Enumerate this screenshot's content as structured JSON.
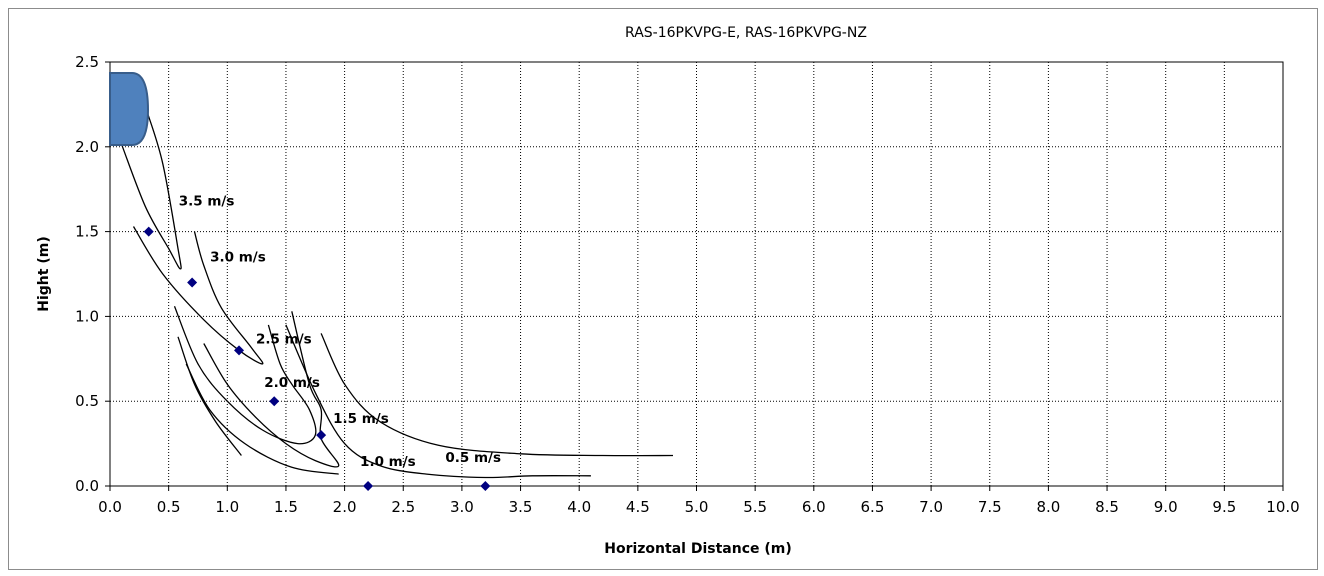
{
  "chart_data": {
    "type": "scatter",
    "title": "RAS-16PKVPG-E, RAS-16PKVPG-NZ",
    "xlabel": "Horizontal Distance (m)",
    "ylabel": "Hight (m)",
    "xlim": [
      0,
      10
    ],
    "ylim": [
      0,
      2.5
    ],
    "x_ticks": [
      "0.0",
      "0.5",
      "1.0",
      "1.5",
      "2.0",
      "2.5",
      "3.0",
      "3.5",
      "4.0",
      "4.5",
      "5.0",
      "5.5",
      "6.0",
      "6.5",
      "7.0",
      "7.5",
      "8.0",
      "8.5",
      "9.0",
      "9.5",
      "10.0"
    ],
    "y_ticks": [
      "0.0",
      "0.5",
      "1.0",
      "1.5",
      "2.0",
      "2.5"
    ],
    "grid": true,
    "legend": "none",
    "series": [
      {
        "marker_color": "#000080",
        "points": [
          {
            "x": 0.33,
            "y": 1.5,
            "label": "3.5 m/s"
          },
          {
            "x": 0.7,
            "y": 1.2,
            "label": "3.0 m/s"
          },
          {
            "x": 1.1,
            "y": 0.8,
            "label": "2.5 m/s"
          },
          {
            "x": 1.4,
            "y": 0.5,
            "label": "2.0 m/s"
          },
          {
            "x": 1.8,
            "y": 0.3,
            "label": "1.5 m/s"
          },
          {
            "x": 2.2,
            "y": 0.0,
            "label": "1.0 m/s"
          },
          {
            "x": 3.2,
            "y": 0.0,
            "label": "0.5 m/s"
          }
        ]
      }
    ],
    "contours": [
      {
        "label": "3.5 m/s",
        "points": [
          [
            0.08,
            2.05
          ],
          [
            0.3,
            1.65
          ],
          [
            0.5,
            1.4
          ],
          [
            0.6,
            1.28
          ],
          [
            0.58,
            1.4
          ],
          [
            0.45,
            1.9
          ],
          [
            0.32,
            2.2
          ]
        ]
      },
      {
        "label": "3.0 m/s",
        "points": [
          [
            0.2,
            1.53
          ],
          [
            0.45,
            1.25
          ],
          [
            0.8,
            0.98
          ],
          [
            1.1,
            0.8
          ],
          [
            1.3,
            0.72
          ],
          [
            1.2,
            0.82
          ],
          [
            0.95,
            1.05
          ],
          [
            0.8,
            1.3
          ],
          [
            0.72,
            1.5
          ]
        ]
      },
      {
        "label": "2.5 m/s",
        "points": [
          [
            0.55,
            1.06
          ],
          [
            0.75,
            0.72
          ],
          [
            1.0,
            0.5
          ],
          [
            1.3,
            0.33
          ],
          [
            1.6,
            0.25
          ],
          [
            1.75,
            0.3
          ],
          [
            1.7,
            0.45
          ],
          [
            1.55,
            0.6
          ],
          [
            1.45,
            0.72
          ],
          [
            1.35,
            0.95
          ]
        ]
      },
      {
        "label": "2.0 m/s",
        "points": [
          [
            0.8,
            0.84
          ],
          [
            1.0,
            0.6
          ],
          [
            1.25,
            0.4
          ],
          [
            1.5,
            0.25
          ],
          [
            1.75,
            0.15
          ],
          [
            1.95,
            0.12
          ],
          [
            1.8,
            0.28
          ],
          [
            1.8,
            0.45
          ],
          [
            1.7,
            0.6
          ],
          [
            1.55,
            1.03
          ]
        ]
      },
      {
        "label": "1.5 m/s",
        "points": [
          [
            0.58,
            0.88
          ],
          [
            0.72,
            0.6
          ],
          [
            0.9,
            0.38
          ],
          [
            1.12,
            0.18
          ]
        ]
      },
      {
        "label": "1.0 m/s",
        "points": [
          [
            0.65,
            0.72
          ],
          [
            0.85,
            0.45
          ],
          [
            1.15,
            0.25
          ],
          [
            1.55,
            0.11
          ],
          [
            1.95,
            0.07
          ]
        ]
      },
      {
        "label": "0.5 m/s",
        "points": [
          [
            1.8,
            0.9
          ],
          [
            2.0,
            0.6
          ],
          [
            2.3,
            0.38
          ],
          [
            2.8,
            0.24
          ],
          [
            3.5,
            0.19
          ],
          [
            4.2,
            0.18
          ],
          [
            4.8,
            0.18
          ]
        ]
      },
      {
        "label": "1.0 m/s",
        "points": [
          [
            1.5,
            0.95
          ],
          [
            1.75,
            0.55
          ],
          [
            2.0,
            0.25
          ],
          [
            2.3,
            0.12
          ],
          [
            2.7,
            0.07
          ],
          [
            3.2,
            0.05
          ],
          [
            3.6,
            0.06
          ],
          [
            4.1,
            0.06
          ]
        ]
      }
    ]
  }
}
